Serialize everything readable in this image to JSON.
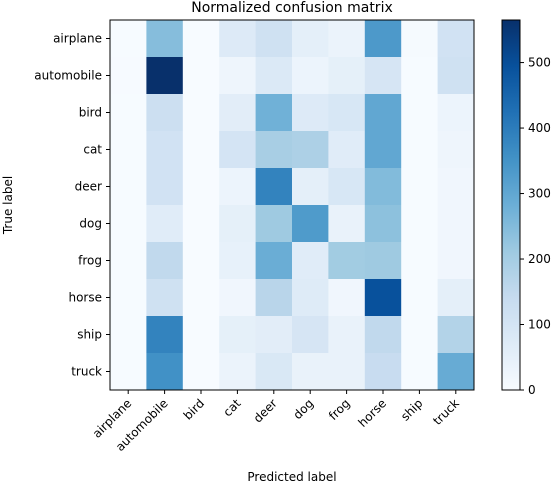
{
  "chart_data": {
    "type": "heatmap",
    "title": "Normalized confusion matrix",
    "xlabel": "Predicted label",
    "ylabel": "True label",
    "x_categories": [
      "airplane",
      "automobile",
      "bird",
      "cat",
      "deer",
      "dog",
      "frog",
      "horse",
      "ship",
      "truck"
    ],
    "y_categories": [
      "airplane",
      "automobile",
      "bird",
      "cat",
      "deer",
      "dog",
      "frog",
      "horse",
      "ship",
      "truck"
    ],
    "values": [
      [
        2,
        245,
        0,
        75,
        115,
        55,
        35,
        335,
        5,
        110
      ],
      [
        3,
        565,
        0,
        25,
        80,
        30,
        50,
        95,
        2,
        115
      ],
      [
        2,
        125,
        0,
        60,
        275,
        75,
        90,
        300,
        2,
        30
      ],
      [
        2,
        110,
        0,
        100,
        195,
        185,
        65,
        300,
        2,
        25
      ],
      [
        2,
        110,
        0,
        30,
        385,
        55,
        90,
        250,
        2,
        20
      ],
      [
        2,
        65,
        0,
        50,
        210,
        330,
        40,
        235,
        2,
        20
      ],
      [
        2,
        150,
        0,
        45,
        285,
        65,
        205,
        210,
        2,
        20
      ],
      [
        2,
        115,
        0,
        20,
        165,
        70,
        20,
        495,
        2,
        55
      ],
      [
        2,
        385,
        0,
        50,
        60,
        95,
        40,
        150,
        2,
        175
      ],
      [
        2,
        355,
        0,
        35,
        85,
        40,
        40,
        135,
        2,
        290
      ]
    ],
    "colorbar": {
      "min": 0,
      "max": 565,
      "ticks": [
        0,
        100,
        200,
        300,
        400,
        500
      ]
    },
    "colormap": [
      "#f7fbff",
      "#deebf7",
      "#c6dbef",
      "#9ecae1",
      "#6baed6",
      "#4292c6",
      "#2171b5",
      "#08519c",
      "#08306b"
    ]
  }
}
